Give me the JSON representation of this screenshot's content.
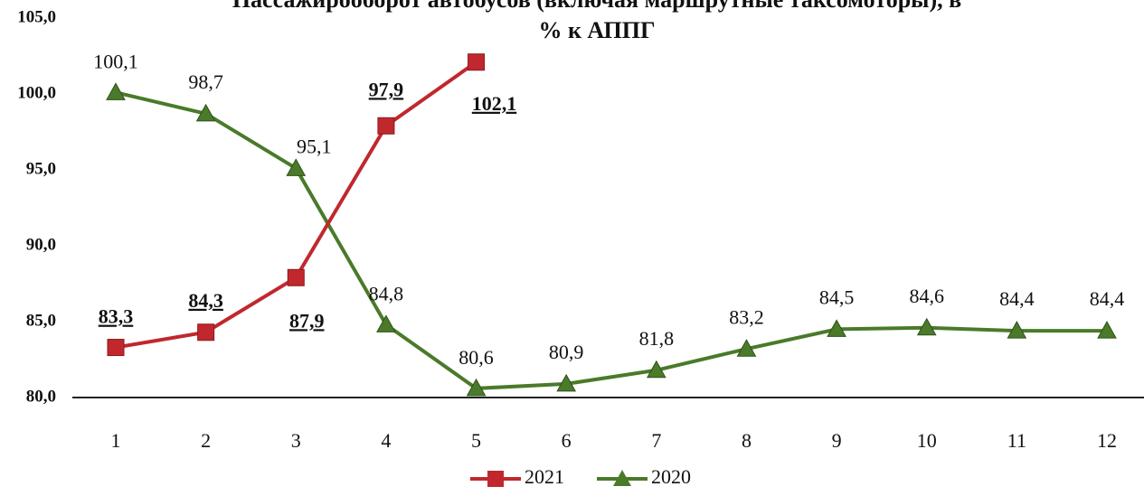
{
  "chart_data": {
    "type": "line",
    "title": [
      "Пассажирооборот автобусов (включая маршрутные таксомоторы), в",
      "% к АППГ"
    ],
    "categories": [
      "1",
      "2",
      "3",
      "4",
      "5",
      "6",
      "7",
      "8",
      "9",
      "10",
      "11",
      "12"
    ],
    "series": [
      {
        "name": "2021",
        "color": "#c0282e",
        "marker": "square",
        "values": [
          83.3,
          84.3,
          87.9,
          97.9,
          102.1,
          null,
          null,
          null,
          null,
          null,
          null,
          null
        ],
        "value_labels": [
          "83,3",
          "84,3",
          "87,9",
          "97,9",
          "102,1",
          null,
          null,
          null,
          null,
          null,
          null,
          null
        ]
      },
      {
        "name": "2020",
        "color": "#4a7a2a",
        "marker": "triangle",
        "values": [
          100.1,
          98.7,
          95.1,
          84.8,
          80.6,
          80.9,
          81.8,
          83.2,
          84.5,
          84.6,
          84.4,
          84.4
        ],
        "value_labels": [
          "100,1",
          "98,7",
          "95,1",
          "84,8",
          "80,6",
          "80,9",
          "81,8",
          "83,2",
          "84,5",
          "84,6",
          "84,4",
          "84,4"
        ]
      }
    ],
    "ylim": [
      80,
      105
    ],
    "yticks": [
      {
        "value": 80,
        "label": "80,0"
      },
      {
        "value": 85,
        "label": "85,0"
      },
      {
        "value": 90,
        "label": "90,0"
      },
      {
        "value": 95,
        "label": "95,0"
      },
      {
        "value": 100,
        "label": "100,0"
      },
      {
        "value": 105,
        "label": "105,0"
      }
    ],
    "legend": "bottom"
  }
}
